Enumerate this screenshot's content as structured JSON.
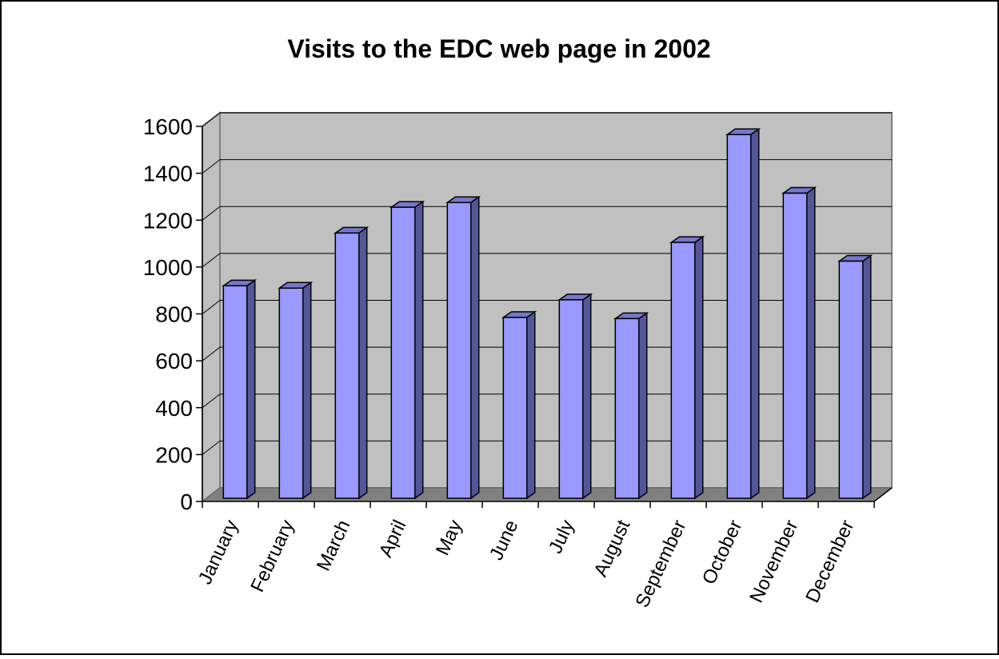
{
  "chart_data": {
    "type": "bar",
    "title": "Visits to the EDC web page in 2002",
    "xlabel": "",
    "ylabel": "",
    "categories": [
      "January",
      "February",
      "March",
      "April",
      "May",
      "June",
      "July",
      "August",
      "September",
      "October",
      "November",
      "December"
    ],
    "values": [
      920,
      910,
      1145,
      1255,
      1275,
      785,
      860,
      780,
      1105,
      1565,
      1315,
      1025
    ],
    "ylim": [
      0,
      1600
    ],
    "yticks": [
      0,
      200,
      400,
      600,
      800,
      1000,
      1200,
      1400,
      1600
    ],
    "grid": true,
    "legend": "none",
    "colors": {
      "bar_front": "#9999ff",
      "bar_side": "#555599",
      "bar_top": "#7777cc",
      "wall": "#c0c0c0",
      "floor": "#808080",
      "gridline": "#000000"
    }
  }
}
